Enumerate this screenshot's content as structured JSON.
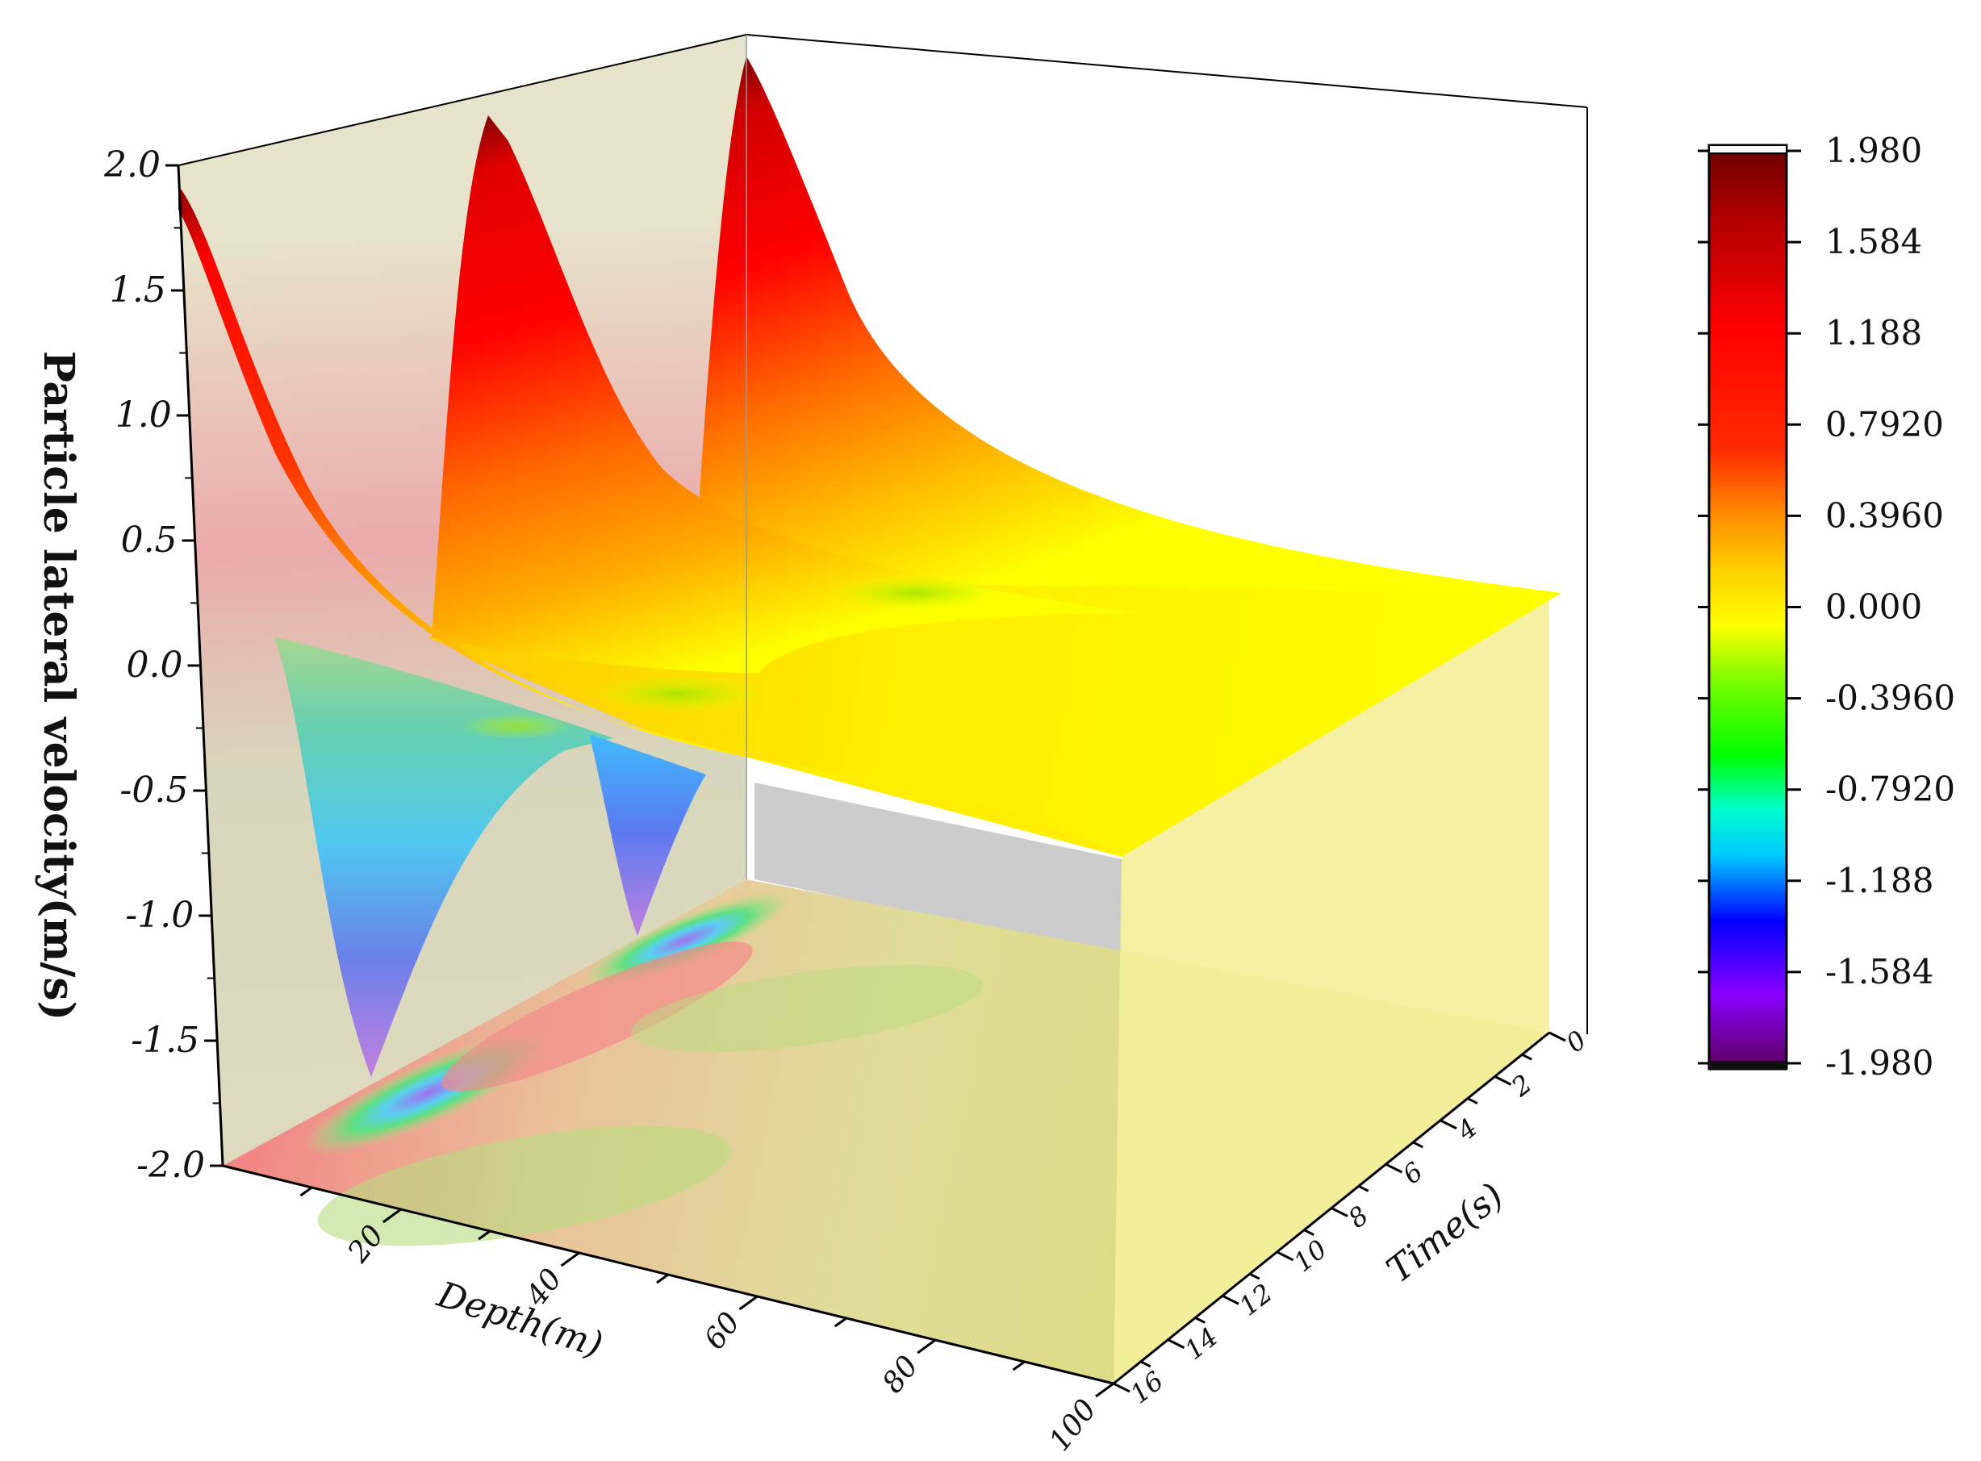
{
  "chart_data": {
    "type": "surface3d",
    "title": "",
    "xlabel": "Depth(m)",
    "ylabel": "Time(s)",
    "zlabel": "Particle lateral velocity(m/s)",
    "xlim": [
      0,
      100
    ],
    "ylim": [
      0,
      16
    ],
    "zlim": [
      -2.0,
      2.0
    ],
    "x_ticks": [
      "20",
      "40",
      "60",
      "80",
      "100"
    ],
    "y_ticks": [
      "0",
      "2",
      "4",
      "6",
      "8",
      "10",
      "12",
      "14",
      "16"
    ],
    "z_ticks": [
      "-2.0",
      "-1.5",
      "-1.0",
      "-0.5",
      "0.0",
      "0.5",
      "1.0",
      "1.5",
      "2.0"
    ],
    "colorbar": {
      "ticks": [
        "1.980",
        "1.584",
        "1.188",
        "0.7920",
        "0.3960",
        "0.000",
        "-0.3960",
        "-0.7920",
        "-1.188",
        "-1.584",
        "-1.980"
      ],
      "colors": [
        "#7a0000",
        "#cc0000",
        "#ff0000",
        "#ff4500",
        "#ffa500",
        "#ffff00",
        "#7cfc00",
        "#00ff00",
        "#00ffff",
        "#0000ff",
        "#8000ff",
        "#7a007a"
      ]
    },
    "series": [
      {
        "profile_time": 0,
        "depth": [
          0,
          10,
          20,
          30,
          40,
          50,
          60,
          70,
          80,
          90,
          100
        ],
        "velocity": [
          1.95,
          1.28,
          0.82,
          0.52,
          0.32,
          0.2,
          0.13,
          0.08,
          0.05,
          0.03,
          0.02
        ]
      },
      {
        "profile_time": 4,
        "depth": [
          0,
          10,
          20,
          30,
          40,
          50,
          60,
          70,
          80,
          90,
          100
        ],
        "velocity": [
          1.95,
          1.28,
          0.82,
          0.52,
          0.32,
          0.2,
          0.13,
          0.08,
          0.05,
          0.03,
          0.02
        ]
      },
      {
        "profile_time": 8,
        "depth": [
          0,
          10,
          20,
          30,
          40,
          50,
          60,
          70,
          80,
          90,
          100
        ],
        "velocity": [
          1.95,
          1.28,
          0.82,
          0.52,
          0.32,
          0.2,
          0.13,
          0.08,
          0.05,
          0.03,
          0.02
        ]
      }
    ],
    "surface_minimum": -1.6,
    "grid": false
  }
}
